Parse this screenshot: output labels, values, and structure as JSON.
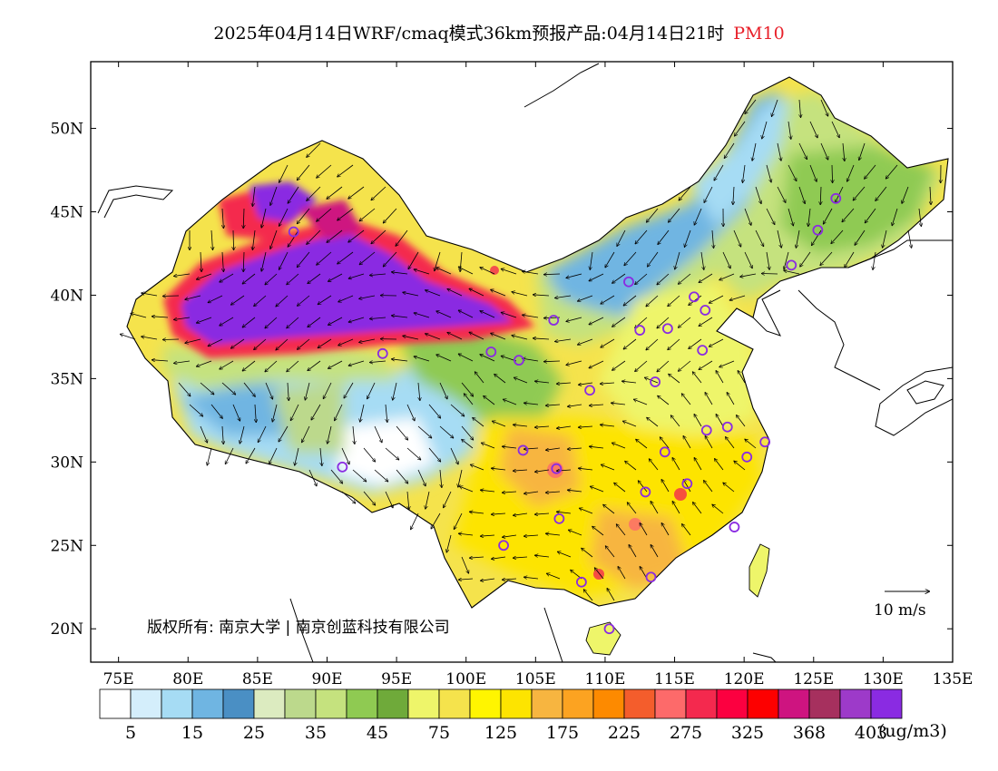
{
  "title": {
    "main": "2025年04月14日WRF/cmaq模式36km预报产品:04月14日21时",
    "variable": "PM10"
  },
  "map": {
    "lat_labels": [
      "50N",
      "45N",
      "40N",
      "35N",
      "30N",
      "25N",
      "20N"
    ],
    "lon_labels": [
      "75E",
      "80E",
      "85E",
      "90E",
      "95E",
      "100E",
      "105E",
      "110E",
      "115E",
      "120E",
      "125E",
      "130E",
      "135E"
    ],
    "lon_range": [
      73,
      135
    ],
    "lat_range": [
      18,
      54
    ],
    "copyright": "版权所有: 南京大学 | 南京创蓝科技有限公司",
    "wind_reference": "10 m/s"
  },
  "colorbar": {
    "colors": [
      "#ffffff",
      "#d4eefb",
      "#a6dcf4",
      "#6fb5e2",
      "#4a8fc4",
      "#dcebc0",
      "#bcd98c",
      "#c5e27e",
      "#8fca52",
      "#6faa3a",
      "#eef56a",
      "#f5e34c",
      "#fff500",
      "#fde400",
      "#f7b540",
      "#fca321",
      "#fd8a00",
      "#f45d2c",
      "#fd6a6a",
      "#f4294e",
      "#fc0040",
      "#fd0000",
      "#ce1480",
      "#a6305e",
      "#9d3ac9",
      "#8a2be2"
    ],
    "tick_labels": [
      "5",
      "15",
      "25",
      "35",
      "45",
      "75",
      "125",
      "175",
      "225",
      "275",
      "325",
      "368",
      "403"
    ],
    "unit": "(ug/m3)"
  },
  "cities": [
    {
      "lon": 126.6,
      "lat": 45.8
    },
    {
      "lon": 125.3,
      "lat": 43.9
    },
    {
      "lon": 123.4,
      "lat": 41.8
    },
    {
      "lon": 111.7,
      "lat": 40.8
    },
    {
      "lon": 116.4,
      "lat": 39.9
    },
    {
      "lon": 117.2,
      "lat": 39.1
    },
    {
      "lon": 114.5,
      "lat": 38.0
    },
    {
      "lon": 112.5,
      "lat": 37.9
    },
    {
      "lon": 117.0,
      "lat": 36.7
    },
    {
      "lon": 106.3,
      "lat": 38.5
    },
    {
      "lon": 103.8,
      "lat": 36.1
    },
    {
      "lon": 101.8,
      "lat": 36.6
    },
    {
      "lon": 108.9,
      "lat": 34.3
    },
    {
      "lon": 113.6,
      "lat": 34.8
    },
    {
      "lon": 117.3,
      "lat": 31.9
    },
    {
      "lon": 118.8,
      "lat": 32.1
    },
    {
      "lon": 121.5,
      "lat": 31.2
    },
    {
      "lon": 120.2,
      "lat": 30.3
    },
    {
      "lon": 114.3,
      "lat": 30.6
    },
    {
      "lon": 115.9,
      "lat": 28.7
    },
    {
      "lon": 112.9,
      "lat": 28.2
    },
    {
      "lon": 104.1,
      "lat": 30.7
    },
    {
      "lon": 106.5,
      "lat": 29.6
    },
    {
      "lon": 106.7,
      "lat": 26.6
    },
    {
      "lon": 102.7,
      "lat": 25.0
    },
    {
      "lon": 108.3,
      "lat": 22.8
    },
    {
      "lon": 113.3,
      "lat": 23.1
    },
    {
      "lon": 119.3,
      "lat": 26.1
    },
    {
      "lon": 110.3,
      "lat": 20.0
    },
    {
      "lon": 91.1,
      "lat": 29.7
    },
    {
      "lon": 87.6,
      "lat": 43.8
    },
    {
      "lon": 94.0,
      "lat": 36.5
    }
  ]
}
